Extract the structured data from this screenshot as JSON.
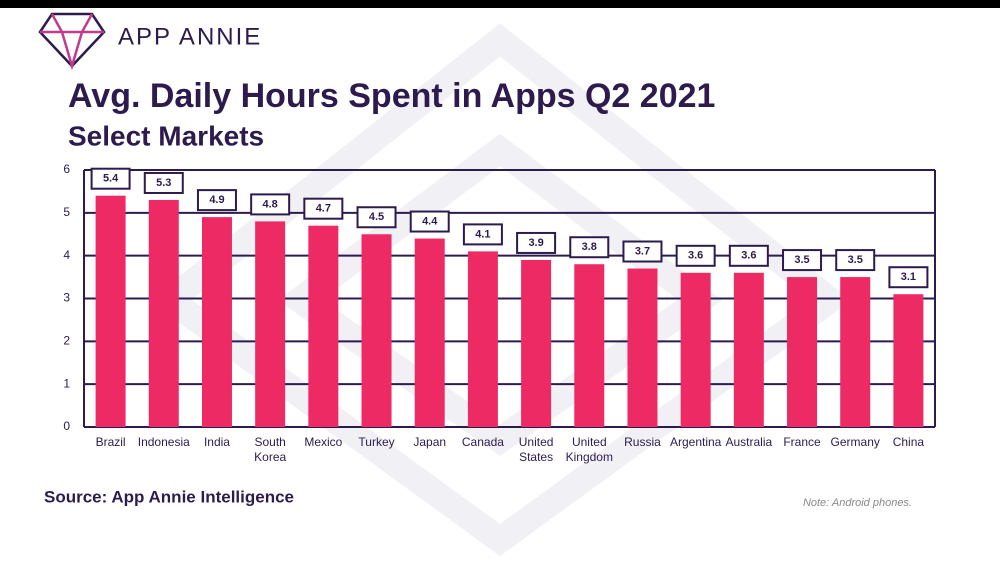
{
  "brand": "APP ANNIE",
  "chart_data": {
    "type": "bar",
    "title": "Avg. Daily Hours Spent in Apps Q2 2021",
    "subtitle": "Select Markets",
    "categories": [
      "Brazil",
      "Indonesia",
      "India",
      "South Korea",
      "Mexico",
      "Turkey",
      "Japan",
      "Canada",
      "United States",
      "United Kingdom",
      "Russia",
      "Argentina",
      "Australia",
      "France",
      "Germany",
      "China"
    ],
    "values": [
      5.4,
      5.3,
      4.9,
      4.8,
      4.7,
      4.5,
      4.4,
      4.1,
      3.9,
      3.8,
      3.7,
      3.6,
      3.6,
      3.5,
      3.5,
      3.1
    ],
    "color": "#ee2a64",
    "ylim": [
      0,
      6
    ],
    "yticks": [
      0,
      1,
      2,
      3,
      4,
      5,
      6
    ],
    "grid": true,
    "source": "Source: App Annie Intelligence",
    "note": "Note: Android phones."
  }
}
